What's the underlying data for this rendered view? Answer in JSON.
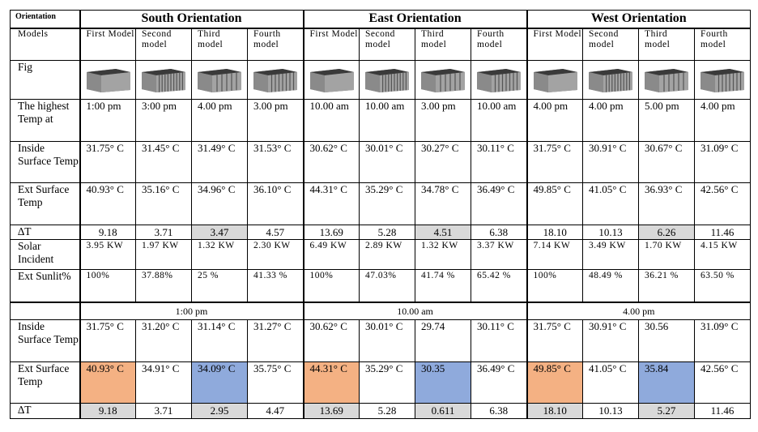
{
  "header": {
    "corner": "Orientation",
    "groups": [
      "South Orientation",
      "East Orientation",
      "West Orientation"
    ]
  },
  "rows": [
    {
      "label": "Models",
      "cells": [
        "First Model",
        "Second model",
        "Third model",
        "Fourth model",
        "First Model",
        "Second model",
        "Third model",
        "Fourth model",
        "First Model",
        "Second model",
        "Third model",
        "Fourth model"
      ]
    },
    {
      "label": "Fig"
    },
    {
      "label": "The highest Temp at",
      "cells": [
        "1:00 pm",
        "3:00 pm",
        "4.00 pm",
        "3.00 pm",
        "10.00 am",
        "10.00 am",
        "3.00 pm",
        "10.00 am",
        "4.00 pm",
        "4.00 pm",
        "5.00 pm",
        "4.00 pm"
      ]
    },
    {
      "label": "Inside Surface Temp",
      "cells": [
        "31.75° C",
        "31.45° C",
        "31.49° C",
        "31.53° C",
        "30.62° C",
        "30.01° C",
        "30.27° C",
        "30.11° C",
        "31.75° C",
        "30.91° C",
        "30.67° C",
        "31.09° C"
      ]
    },
    {
      "label": "Ext Surface Temp",
      "cells": [
        "40.93° C",
        "35.16° C",
        "34.96° C",
        "36.10° C",
        "44.31° C",
        "35.29° C",
        "34.78° C",
        "36.49° C",
        "49.85° C",
        "41.05° C",
        "36.93° C",
        "42.56° C"
      ]
    },
    {
      "label": "∆T",
      "cells": [
        "9.18",
        "3.71",
        "3.47",
        "4.57",
        "13.69",
        "5.28",
        "4.51",
        "6.38",
        "18.10",
        "10.13",
        "6.26",
        "11.46"
      ]
    },
    {
      "label": "Solar Incident",
      "cells": [
        "3.95 KW",
        "1.97 KW",
        "1.32 KW",
        "2.30 KW",
        "6.49 KW",
        "2.89 KW",
        "1.32 KW",
        "3.37 KW",
        "7.14 KW",
        "3.49 KW",
        "1.70 KW",
        "4.15 KW"
      ]
    },
    {
      "label": "Ext Sunlit%",
      "cells": [
        "100%",
        "37.88%",
        "25 %",
        "41.33 %",
        "100%",
        "47.03%",
        "41.74 %",
        "65.42 %",
        "100%",
        "48.49 %",
        "36.21 %",
        "63.50 %"
      ]
    }
  ],
  "section2": {
    "times": [
      "1:00 pm",
      "10.00 am",
      "4.00 pm"
    ],
    "rows": [
      {
        "label": "Inside Surface Temp",
        "cells": [
          "31.75° C",
          "31.20° C",
          "31.14° C",
          "31.27° C",
          "30.62° C",
          "30.01° C",
          "29.74",
          "30.11° C",
          "31.75° C",
          "30.91° C",
          "30.56",
          "31.09° C"
        ]
      },
      {
        "label": "Ext Surface Temp",
        "cells": [
          "40.93° C",
          "34.91° C",
          "34.09° C",
          "35.75° C",
          "44.31° C",
          "35.29° C",
          "30.35",
          "36.49° C",
          "49.85° C",
          "41.05° C",
          "35.84",
          "42.56° C"
        ]
      },
      {
        "label": "∆T",
        "cells": [
          "9.18",
          "3.71",
          "2.95",
          "4.47",
          "13.69",
          "5.28",
          "0.611",
          "6.38",
          "18.10",
          "10.13",
          "5.27",
          "11.46"
        ]
      }
    ]
  }
}
